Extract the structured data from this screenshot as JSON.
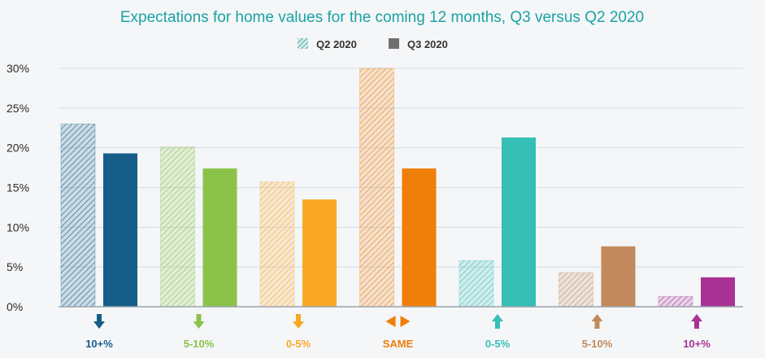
{
  "chart_data": {
    "type": "bar",
    "title": "Expectations for home values for the coming 12 months, Q3 versus Q2 2020",
    "xlabel": "",
    "ylabel": "",
    "ylim": [
      0,
      30
    ],
    "y_ticks": [
      "0%",
      "5%",
      "10%",
      "15%",
      "20%",
      "25%",
      "30%"
    ],
    "y_tick_values": [
      0,
      5,
      10,
      15,
      20,
      25,
      30
    ],
    "grid": true,
    "legend_position": "top-center",
    "categories": [
      "10+%",
      "5-10%",
      "0-5%",
      "SAME",
      "0-5%",
      "5-10%",
      "10+%"
    ],
    "category_directions": [
      "down",
      "down",
      "down",
      "same",
      "up",
      "up",
      "up"
    ],
    "category_colors": [
      "#165d8a",
      "#8bc34a",
      "#f9a825",
      "#f07f0a",
      "#35bfb5",
      "#c28a5c",
      "#a83294"
    ],
    "series": [
      {
        "name": "Q2 2020",
        "style": "hatched",
        "values": [
          23,
          20.1,
          15.7,
          30,
          5.8,
          4.3,
          1.3
        ]
      },
      {
        "name": "Q3 2020",
        "style": "solid",
        "values": [
          19.3,
          17.4,
          13.5,
          17.4,
          21.3,
          7.6,
          3.7
        ]
      }
    ]
  },
  "legend": {
    "q2_label": "Q2 2020",
    "q3_label": "Q3 2020",
    "swatch_color": "#6f6f6f"
  },
  "colors": {
    "title": "#1aa3a3",
    "grid": "#d6dde3",
    "axis": "#9aa4ac",
    "tick_text": "#2b2b2b"
  }
}
